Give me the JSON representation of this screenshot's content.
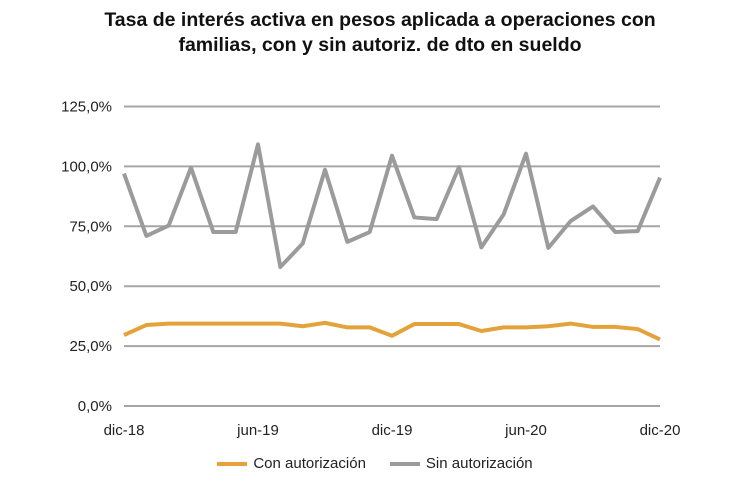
{
  "chart_data": {
    "type": "line",
    "title": "Tasa de interés activa en pesos aplicada a operaciones con familias, con y sin autoriz. de dto en sueldo",
    "x": [
      "dic-18",
      "ene-19",
      "feb-19",
      "mar-19",
      "abr-19",
      "may-19",
      "jun-19",
      "jul-19",
      "ago-19",
      "sep-19",
      "oct-19",
      "nov-19",
      "dic-19",
      "ene-20",
      "feb-20",
      "mar-20",
      "abr-20",
      "may-20",
      "jun-20",
      "jul-20",
      "ago-20",
      "sep-20",
      "oct-20",
      "nov-20",
      "dic-20"
    ],
    "x_tick_labels": [
      "dic-18",
      "jun-19",
      "dic-19",
      "jun-20",
      "dic-20"
    ],
    "x_tick_indices": [
      0,
      6,
      12,
      18,
      24
    ],
    "y_tick_labels": [
      "0,0%",
      "25,0%",
      "50,0%",
      "75,0%",
      "100,0%",
      "125,0%"
    ],
    "ylim": [
      0,
      125
    ],
    "grid": true,
    "legend": "bottom",
    "series": [
      {
        "name": "Con autorización",
        "color": "#E3A33A",
        "values": [
          29.6,
          33.8,
          34.4,
          34.4,
          34.4,
          34.4,
          34.4,
          34.4,
          33.3,
          34.7,
          32.8,
          32.8,
          29.3,
          34.2,
          34.2,
          34.2,
          31.3,
          32.8,
          32.8,
          33.3,
          34.4,
          33.0,
          33.0,
          32.1,
          27.8
        ]
      },
      {
        "name": "Sin autorización",
        "color": "#9B9B9B",
        "values": [
          97.0,
          71.0,
          75.3,
          99.5,
          72.6,
          72.6,
          109.2,
          58.0,
          67.8,
          98.6,
          68.5,
          72.6,
          104.5,
          78.7,
          78.0,
          99.7,
          66.2,
          80.0,
          105.3,
          66.0,
          77.2,
          83.3,
          72.6,
          73.0,
          95.3
        ]
      }
    ]
  }
}
